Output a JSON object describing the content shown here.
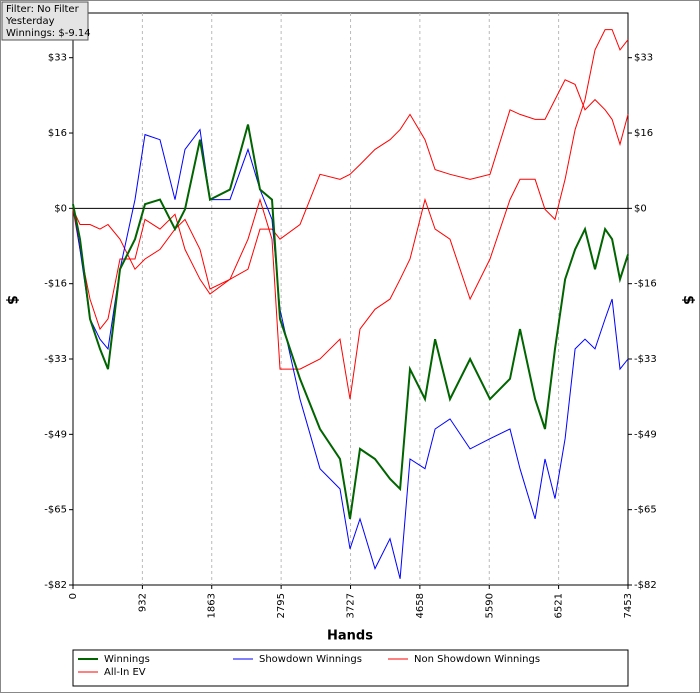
{
  "chart_data": {
    "type": "line",
    "info": [
      "Filter: No Filter",
      "Yesterday",
      "Winnings: $-9.14"
    ],
    "xlabel": "Hands",
    "ylabel": "$",
    "x": [
      0,
      94,
      228,
      363,
      470,
      631,
      833,
      967,
      1168,
      1370,
      1504,
      1705,
      1840,
      2108,
      2350,
      2511,
      2673,
      2780,
      3049,
      3317,
      3586,
      3720,
      3854,
      4056,
      4257,
      4392,
      4526,
      4727,
      4862,
      5063,
      5332,
      5600,
      5869,
      6003,
      6205,
      6339,
      6473,
      6608,
      6742,
      6876,
      7010,
      7145,
      7239,
      7346,
      7453
    ],
    "series": [
      {
        "name": "Winnings",
        "color": "#006400",
        "values": [
          0.9,
          -6.7,
          -24.0,
          -30.5,
          -34.9,
          -13.2,
          -6.7,
          0.9,
          1.9,
          -4.5,
          -0.2,
          14.9,
          1.9,
          4.1,
          18.2,
          4.1,
          1.9,
          -24.0,
          -37.0,
          -47.9,
          -54.4,
          -67.4,
          -52.2,
          -54.4,
          -58.7,
          -60.9,
          -34.9,
          -41.4,
          -28.4,
          -41.4,
          -32.7,
          -41.4,
          -37.0,
          -26.2,
          -41.4,
          -47.9,
          -30.5,
          -15.4,
          -8.9,
          -4.5,
          -13.2,
          -4.5,
          -6.7,
          -15.4,
          -10.0
        ]
      },
      {
        "name": "Showdown Winnings",
        "color": "#0000ff",
        "values": [
          0.9,
          -8.9,
          -24.0,
          -28.4,
          -30.5,
          -13.2,
          1.9,
          16.0,
          14.9,
          1.9,
          12.8,
          17.1,
          1.9,
          1.9,
          12.8,
          4.1,
          -2.4,
          -21.9,
          -41.4,
          -56.5,
          -60.9,
          -73.9,
          -67.4,
          -78.2,
          -71.7,
          -80.4,
          -54.4,
          -56.5,
          -47.9,
          -45.7,
          -52.2,
          -50.0,
          -47.9,
          -56.5,
          -67.4,
          -54.4,
          -63.0,
          -50.0,
          -30.5,
          -28.4,
          -30.5,
          -24.0,
          -19.7,
          -34.9,
          -32.7
        ]
      },
      {
        "name": "Non Showdown Winnings",
        "color": "#ff0000",
        "values": [
          -0.2,
          -3.5,
          -3.5,
          -4.5,
          -3.5,
          -6.7,
          -13.2,
          -11.0,
          -8.9,
          -4.5,
          -2.4,
          -8.9,
          -17.5,
          -15.4,
          -13.2,
          -4.5,
          -4.5,
          -6.7,
          -3.5,
          7.4,
          6.3,
          7.4,
          9.5,
          12.8,
          14.9,
          17.1,
          20.4,
          14.9,
          8.4,
          7.4,
          6.3,
          7.4,
          21.4,
          20.4,
          19.3,
          19.3,
          23.6,
          27.9,
          26.9,
          21.4,
          23.6,
          21.4,
          19.3,
          13.9,
          20.4
        ]
      },
      {
        "name": "All-In EV",
        "color": "#ff0000",
        "values": [
          -0.2,
          -8.9,
          -19.7,
          -26.2,
          -24.0,
          -11.0,
          -11.0,
          -2.4,
          -4.5,
          -1.3,
          -8.9,
          -15.4,
          -18.6,
          -15.4,
          -6.7,
          1.9,
          -6.7,
          -34.9,
          -34.9,
          -32.7,
          -28.4,
          -41.4,
          -26.2,
          -21.9,
          -19.7,
          -15.4,
          -11.0,
          1.9,
          -4.5,
          -6.7,
          -19.7,
          -11.0,
          1.9,
          6.3,
          6.3,
          -0.2,
          -2.4,
          6.3,
          17.1,
          23.6,
          34.4,
          38.8,
          38.8,
          34.4,
          36.6
        ]
      }
    ],
    "xlim": [
      0,
      7453
    ],
    "xticks": [
      0,
      932,
      1863,
      2795,
      3727,
      4658,
      5590,
      6521,
      7453
    ],
    "ylim": [
      -81.75,
      42.4
    ],
    "yticks": [
      {
        "value": 32.7,
        "label": "$33"
      },
      {
        "value": 16.35,
        "label": "$16"
      },
      {
        "value": 0,
        "label": "$0"
      },
      {
        "value": -16.35,
        "label": "-$16"
      },
      {
        "value": -32.7,
        "label": "-$33"
      },
      {
        "value": -49.05,
        "label": "-$49"
      },
      {
        "value": -65.4,
        "label": "-$65"
      },
      {
        "value": -81.75,
        "label": "-$82"
      }
    ],
    "grid": true
  }
}
